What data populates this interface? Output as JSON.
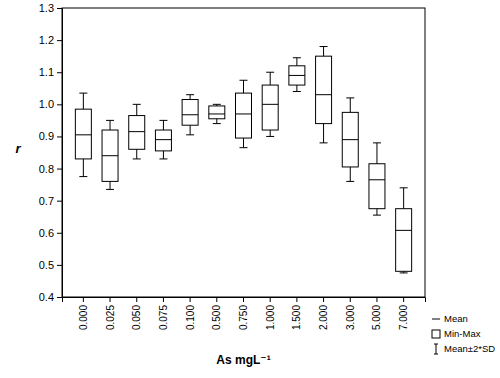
{
  "chart_data": {
    "type": "box",
    "x_label": "As mgL⁻¹",
    "y_label": "r",
    "categories": [
      "0.000",
      "0.025",
      "0.050",
      "0.075",
      "0.100",
      "0.500",
      "0.750",
      "1.000",
      "1.500",
      "2.000",
      "3.000",
      "5.000",
      "7.000"
    ],
    "mean": [
      0.905,
      0.84,
      0.915,
      0.89,
      0.9675,
      0.97,
      0.97,
      1.0,
      1.09,
      1.03,
      0.89,
      0.765,
      0.6075
    ],
    "min": [
      0.83,
      0.76,
      0.86,
      0.855,
      0.935,
      0.955,
      0.895,
      0.92,
      1.06,
      0.94,
      0.805,
      0.675,
      0.48
    ],
    "max": [
      0.985,
      0.92,
      0.965,
      0.92,
      1.015,
      0.995,
      1.035,
      1.06,
      1.12,
      1.15,
      0.975,
      0.815,
      0.675
    ],
    "mean_minus_2sd": [
      0.775,
      0.735,
      0.83,
      0.83,
      0.905,
      0.94,
      0.865,
      0.9,
      1.04,
      0.88,
      0.76,
      0.655,
      0.475
    ],
    "mean_plus_2sd": [
      1.035,
      0.95,
      1.0,
      0.95,
      1.03,
      1.0,
      1.075,
      1.1,
      1.145,
      1.18,
      1.02,
      0.88,
      0.74
    ],
    "legend_entries": [
      "Mean",
      "Min-Max",
      "Mean±2*SD"
    ],
    "legend": "bottom right",
    "color": "#000000",
    "ylim": [
      0.4,
      1.3
    ],
    "yticks": [
      0.4,
      0.5,
      0.6,
      0.7,
      0.8,
      0.9,
      {
        "value": 1,
        "label": "1.0"
      },
      1.1,
      1.2,
      1.3
    ],
    "grid": false
  }
}
